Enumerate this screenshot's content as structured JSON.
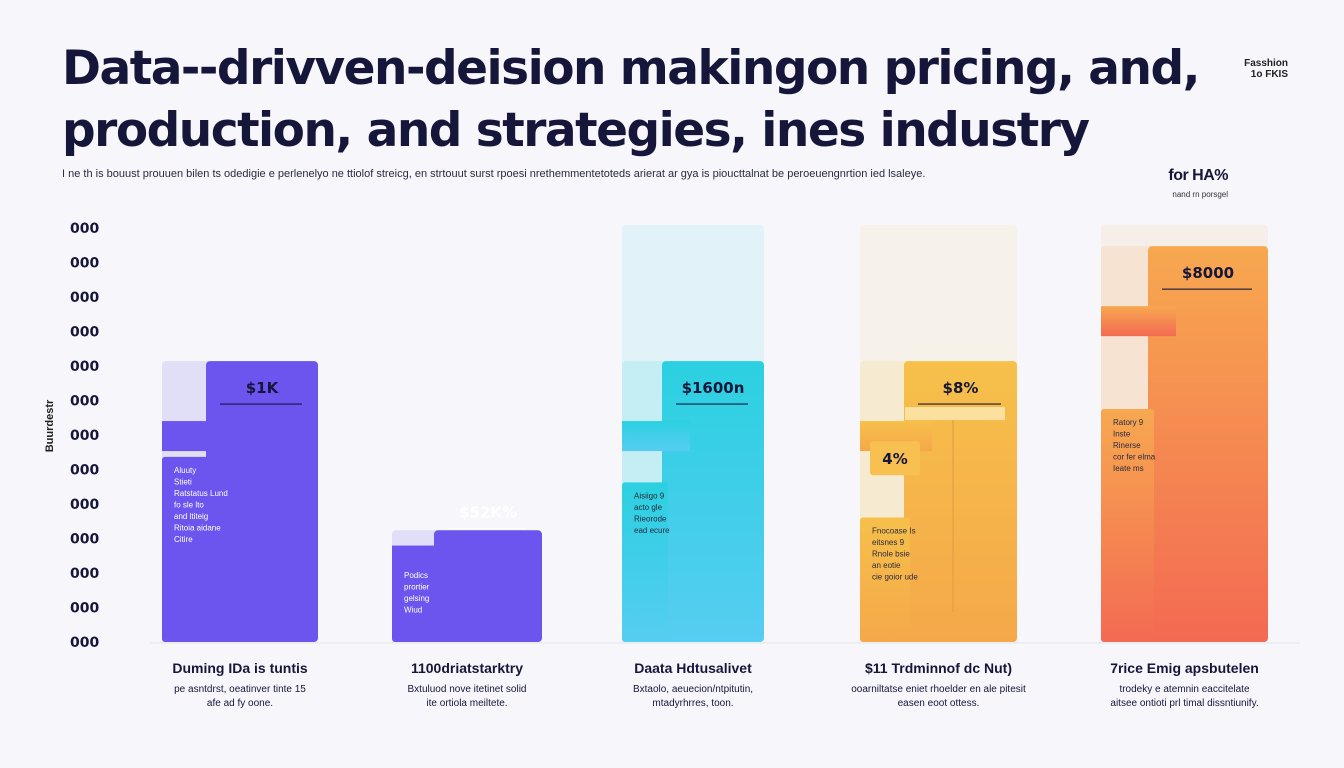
{
  "title_lines": [
    "Data--drivven-deision makingon pricing, and,",
    "production, and strategies,  ines industry"
  ],
  "subtitle": "I ne th is bouust prouuen bilen ts odedigie e perlenelyo ne ttiolof streicg, en strtouut surst rpoesi nrethemmentetoteds arierat ar gya is pioucttalnat be peroeuengnrtion ied lsaleye.",
  "corner_text": [
    "Fasshion",
    "1o FKIS"
  ],
  "callout": {
    "value": "for HA%",
    "note": "nand rn porsgel"
  },
  "colors": {
    "background": "#f6f6fb",
    "title": "#16163a",
    "purple": "#6b55ee",
    "cyan_top": "#2bd0e0",
    "orange": "#f5a84a",
    "red_orange": "#f36a52"
  },
  "chart_data": {
    "type": "bar",
    "title": "Data--drivven-deision makingon pricing, and, production, and strategies,  ines industry",
    "xlabel": "",
    "ylabel": "Buurdestr",
    "ylim": [
      0,
      13
    ],
    "y_ticks": [
      "000",
      "000",
      "000",
      "000",
      "000",
      "000",
      "000",
      "000",
      "000",
      "000",
      "000",
      "000",
      "000"
    ],
    "grid": false,
    "legend": "none",
    "categories": [
      {
        "title": "Duming IDa is tuntis",
        "desc": [
          "pe asntdrst, oeatinver tinte 15",
          "afe ad fy oone."
        ],
        "value": 8.8,
        "tag": "$1K",
        "tag_level": 8.8,
        "note": [
          "Aluuty",
          "Stieti",
          "Ratstatus Lund",
          "fo sle lto",
          "and ltiteig",
          "Ritoia aidane",
          "Citire"
        ],
        "note_level": 5.8,
        "gradient": [
          "#6b55ee",
          "#6b55ee"
        ]
      },
      {
        "title": "1100driatstarktry",
        "desc": [
          "Bxtuluod nove itetinet solid",
          "ite ortiola meiltete."
        ],
        "value": 3.5,
        "tag": "$52K%",
        "tag_level": 4.9,
        "note": [
          "Podics",
          "prortier",
          "gelsing",
          "Wiud"
        ],
        "note_level": 2.5,
        "gradient": [
          "#6b55ee",
          "#6b55ee"
        ]
      },
      {
        "title": "Daata Hdtusalivet",
        "desc": [
          "Bxtaolo, aeuecion/ntpitutin,",
          "mtadyrhrres, toon."
        ],
        "value": 8.8,
        "tag": "$1600n",
        "tag_level": 8.8,
        "note": [
          "Aisiigo 9",
          "acto gle",
          "Rieorode",
          "ead ecure"
        ],
        "note_level": 5.0,
        "gradient": [
          "#2bd0e0",
          "#56cdf2"
        ]
      },
      {
        "title": "$11 Trdminnof dc Nut)",
        "desc": [
          "ooarniltatse eniet rhoelder en ale pitesit",
          "easen eoot ottess."
        ],
        "value": 8.8,
        "tag": "$8%",
        "tag_level": 8.8,
        "second_tag": "4%",
        "second_tag_level": 5.6,
        "note": [
          "Fnocoase Is",
          "eitsnes 9",
          "Rnole bsie",
          "an eotie",
          "cie goior ude"
        ],
        "note_level": 3.9,
        "gradient": [
          "#f6c04a",
          "#f5a84a"
        ]
      },
      {
        "title": "7rice Emig apsbutelen",
        "desc": [
          "trodeky e atemnin eaccitelate",
          "aitsee ontioti prl timal dissntiunify."
        ],
        "value": 12.4,
        "tag": "$8000",
        "tag_level": 12.4,
        "note": [
          "Ratory 9",
          "Inste",
          "Rinerse",
          "cor fer elma",
          "Ieate ms"
        ],
        "note_level": 7.3,
        "gradient": [
          "#f7a850",
          "#f36a52"
        ]
      }
    ]
  }
}
